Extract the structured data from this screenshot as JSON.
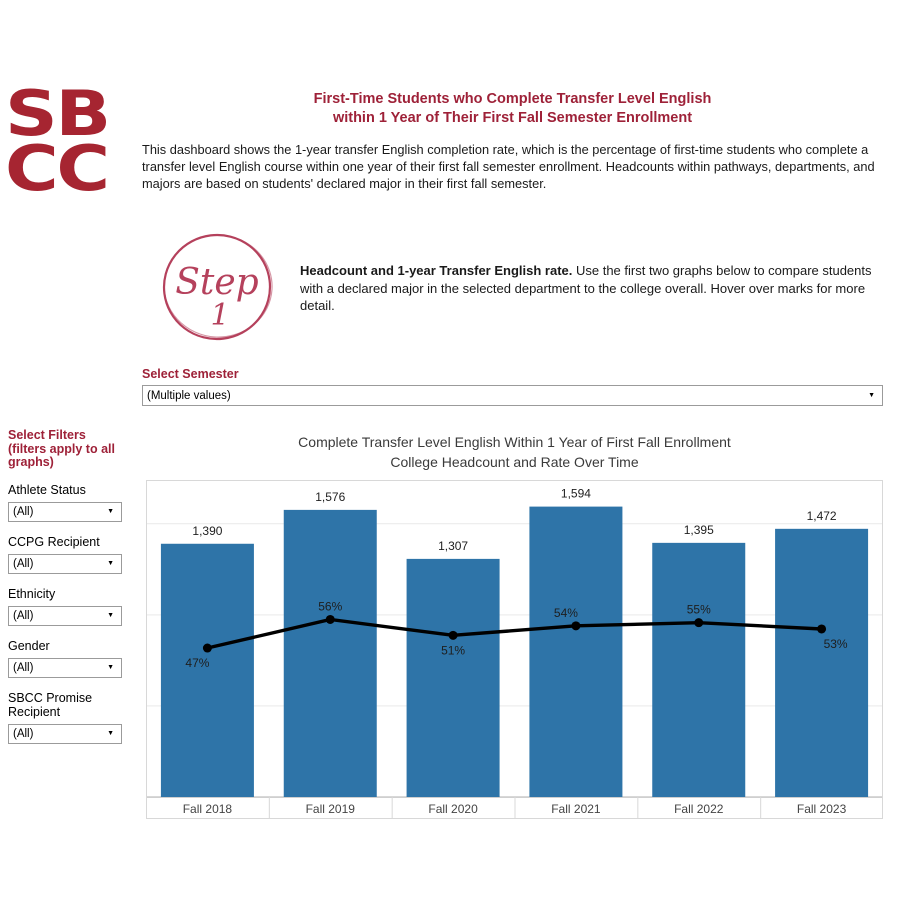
{
  "colors": {
    "brand_red": "#A62531",
    "maroon": "#9E2138",
    "rose": "#B5415C",
    "bar_blue": "#2E74A8",
    "line_black": "#000000"
  },
  "logo": {
    "line1": "SB",
    "line2": "CC"
  },
  "header": {
    "title_line1": "First-Time Students who Complete Transfer Level English",
    "title_line2": "within 1 Year of Their First Fall Semester Enrollment",
    "description": "This dashboard shows the 1-year transfer English completion rate, which is the percentage of first-time students who complete a transfer level English course within one year of their first fall semester enrollment. Headcounts within pathways, departments, and majors are based on students' declared major in their first fall semester."
  },
  "step": {
    "badge_word": "Step",
    "badge_number": "1",
    "bold_lead": "Headcount and 1-year Transfer English rate.",
    "text": " Use the first two graphs below to compare students with a declared major in the selected department to the college overall. Hover over marks for more detail."
  },
  "semester": {
    "label": "Select Semester",
    "value": "(Multiple values)"
  },
  "sidebar": {
    "header_lines": [
      "Select Filters",
      "(filters apply to all",
      "graphs)"
    ],
    "filters": [
      {
        "label": "Athlete Status",
        "value": "(All)"
      },
      {
        "label": "CCPG Recipient",
        "value": "(All)"
      },
      {
        "label": "Ethnicity",
        "value": "(All)"
      },
      {
        "label": "Gender",
        "value": "(All)"
      },
      {
        "label": "SBCC Promise Recipient",
        "value": "(All)"
      }
    ]
  },
  "chart_data": {
    "type": "bar",
    "title_line1": "Complete Transfer Level English Within 1 Year of First Fall Enrollment",
    "title_line2": "College Headcount and Rate Over Time",
    "categories": [
      "Fall 2018",
      "Fall 2019",
      "Fall 2020",
      "Fall 2021",
      "Fall 2022",
      "Fall 2023"
    ],
    "bar_series": {
      "name": "College Headcount",
      "values": [
        1390,
        1576,
        1307,
        1594,
        1395,
        1472
      ],
      "labels": [
        "1,390",
        "1,576",
        "1,307",
        "1,594",
        "1,395",
        "1,472"
      ],
      "axis_max": 1740
    },
    "line_series": {
      "name": "1-year Transfer English Rate",
      "values_pct": [
        47,
        56,
        51,
        54,
        55,
        53
      ],
      "labels": [
        "47%",
        "56%",
        "51%",
        "54%",
        "55%",
        "53%"
      ],
      "label_side": [
        "below",
        "above",
        "below",
        "above",
        "above",
        "below"
      ],
      "label_dx": [
        -10,
        0,
        0,
        -10,
        0,
        14
      ],
      "axis_range_pct": [
        0,
        100
      ]
    },
    "gridline_values": [
      500,
      1000,
      1500
    ],
    "grid_on": true,
    "legend": "none",
    "xlabel": "",
    "ylabel": ""
  }
}
